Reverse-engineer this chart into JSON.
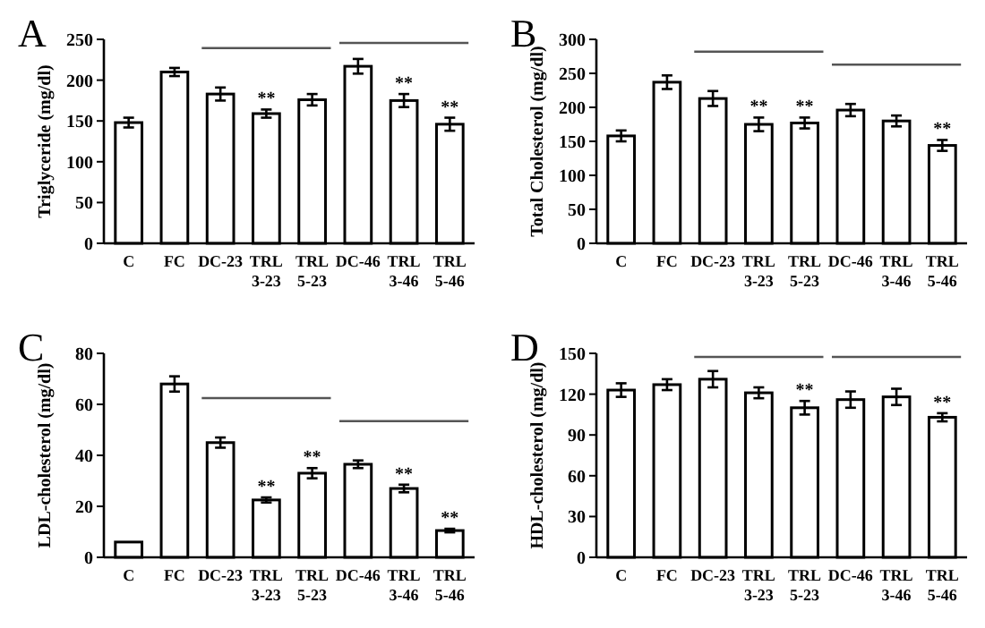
{
  "chart_data": [
    {
      "type": "bar",
      "title": "A",
      "ylabel": "Triglyceride  (mg/dl)",
      "categories": [
        "C",
        "FC",
        "DC-23",
        "TRL 3-23",
        "TRL 5-23",
        "DC-46",
        "TRL 3-46",
        "TRL 5-46"
      ],
      "values": [
        148,
        210,
        183,
        159,
        176,
        217,
        175,
        146
      ],
      "errors": [
        6,
        5,
        8,
        5,
        7,
        9,
        8,
        8
      ],
      "color": "#ffffff",
      "ylim": [
        0,
        250
      ],
      "yticks": [
        0,
        50,
        100,
        150,
        200,
        250
      ],
      "grid": false,
      "annotations": [
        {
          "text": "**",
          "x": "TRL 3-23",
          "y": 164
        },
        {
          "text": "**",
          "x": "TRL 3-46",
          "y": 183
        },
        {
          "text": "**",
          "x": "TRL 5-46",
          "y": 154
        }
      ]
    },
    {
      "type": "bar",
      "title": "B",
      "ylabel": "Total Cholesterol (mg/dl)",
      "categories": [
        "C",
        "FC",
        "DC-23",
        "TRL 3-23",
        "TRL 5-23",
        "DC-46",
        "TRL 3-46",
        "TRL 5-46"
      ],
      "values": [
        158,
        237,
        213,
        175,
        177,
        196,
        180,
        144
      ],
      "errors": [
        8,
        10,
        11,
        10,
        8,
        9,
        8,
        8
      ],
      "color": "#ffffff",
      "ylim": [
        0,
        300
      ],
      "yticks": [
        0,
        50,
        100,
        150,
        200,
        250,
        300
      ],
      "grid": false,
      "annotations": [
        {
          "text": "**",
          "x": "TRL 3-23",
          "y": 185
        },
        {
          "text": "**",
          "x": "TRL 5-23",
          "y": 185
        },
        {
          "text": "**",
          "x": "TRL 5-46",
          "y": 152
        }
      ]
    },
    {
      "type": "bar",
      "title": "C",
      "ylabel": "LDL-cholesterol (mg/dl)",
      "categories": [
        "C",
        "FC",
        "DC-23",
        "TRL 3-23",
        "TRL 5-23",
        "DC-46",
        "TRL 3-46",
        "TRL 5-46"
      ],
      "values": [
        6,
        68,
        45,
        22.5,
        33,
        36.5,
        27,
        10.5
      ],
      "errors": [
        null,
        3,
        2,
        1,
        2,
        1.5,
        1.5,
        0.7
      ],
      "color": "#ffffff",
      "ylim": [
        0,
        80
      ],
      "yticks": [
        0,
        20,
        40,
        60,
        80
      ],
      "grid": false,
      "annotations": [
        {
          "text": "**",
          "x": "TRL 3-23",
          "y": 23.5
        },
        {
          "text": "**",
          "x": "TRL 5-23",
          "y": 35
        },
        {
          "text": "**",
          "x": "TRL 3-46",
          "y": 28.5
        },
        {
          "text": "**",
          "x": "TRL 5-46",
          "y": 11.2
        }
      ]
    },
    {
      "type": "bar",
      "title": "D",
      "ylabel": "HDL-cholesterol (mg/dl)",
      "categories": [
        "C",
        "FC",
        "DC-23",
        "TRL 3-23",
        "TRL 5-23",
        "DC-46",
        "TRL 3-46",
        "TRL 5-46"
      ],
      "values": [
        123,
        127,
        131,
        121,
        110,
        116,
        118,
        103
      ],
      "errors": [
        5,
        4,
        6,
        4,
        5,
        6,
        6,
        3
      ],
      "color": "#ffffff",
      "ylim": [
        0,
        150
      ],
      "yticks": [
        0,
        30,
        60,
        90,
        120,
        150
      ],
      "grid": false,
      "annotations": [
        {
          "text": "**",
          "x": "TRL 5-23",
          "y": 115
        },
        {
          "text": "**",
          "x": "TRL 5-46",
          "y": 106
        }
      ]
    }
  ]
}
